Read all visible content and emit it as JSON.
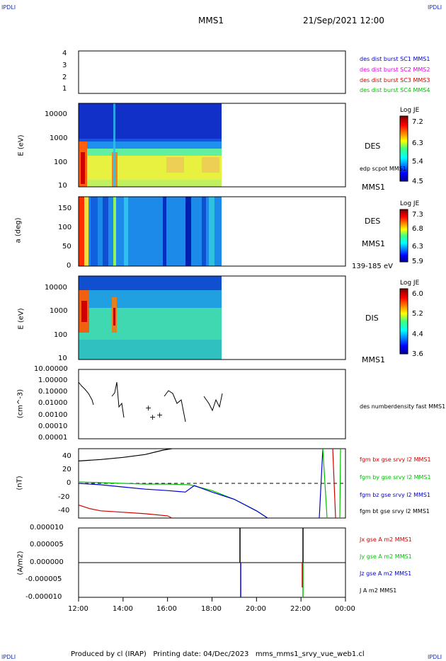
{
  "corners": {
    "tl": "IPDLI",
    "tr": "IPDLI",
    "bl": "IPDLI",
    "br": "IPDLI"
  },
  "header": {
    "spacecraft": "MMS1",
    "datetime": "21/Sep/2021 12:00"
  },
  "footer": {
    "text": "Produced by cl (IRAP)   Printing date: 04/Dec/2023   mms_mms1_srvy_vue_web1.cl"
  },
  "colors": {
    "red": "#d00000",
    "magenta": "#e000e0",
    "green": "#00c000",
    "blue": "#0000d0",
    "black": "#000000"
  },
  "chart_data": [
    {
      "type": "line",
      "panel": "burst-indicator",
      "y_ticks": [
        "4",
        "3",
        "2",
        "1"
      ],
      "legend": [
        {
          "label": "des dist burst SC1 MMS1",
          "color": "#0000d0"
        },
        {
          "label": "des dist burst SC2 MMS2",
          "color": "#e000e0"
        },
        {
          "label": "des dist burst SC3 MMS3",
          "color": "#d00000"
        },
        {
          "label": "des dist burst SC4 MMS4",
          "color": "#00c000"
        }
      ]
    },
    {
      "type": "heatmap",
      "panel": "des-energy",
      "ylabel": "E (eV)",
      "y_ticks": [
        "10000",
        "1000",
        "100",
        "10"
      ],
      "scale": "log",
      "right_labels": [
        "DES",
        "edp scpot MMS1",
        "MMS1"
      ],
      "colorbar": {
        "title": "Log JE",
        "ticks": [
          "7.2",
          "6.3",
          "5.4",
          "4.5"
        ],
        "range": [
          4.5,
          7.2
        ]
      },
      "data_end": "18:30"
    },
    {
      "type": "heatmap",
      "panel": "des-pitch-angle",
      "ylabel": "a (deg)",
      "y_ticks": [
        "150",
        "100",
        "50",
        "0"
      ],
      "ylim": [
        0,
        180
      ],
      "right_labels": [
        "DES",
        "MMS1",
        "139-185 eV"
      ],
      "colorbar": {
        "title": "Log JE",
        "ticks": [
          "7.3",
          "6.8",
          "6.3",
          "5.9"
        ],
        "range": [
          5.9,
          7.3
        ]
      }
    },
    {
      "type": "heatmap",
      "panel": "dis-energy",
      "ylabel": "E (eV)",
      "y_ticks": [
        "10000",
        "1000",
        "100",
        "10"
      ],
      "scale": "log",
      "right_labels": [
        "DIS",
        "MMS1"
      ],
      "colorbar": {
        "title": "Log JE",
        "ticks": [
          "6.0",
          "5.2",
          "4.4",
          "3.6"
        ],
        "range": [
          3.6,
          6.0
        ]
      }
    },
    {
      "type": "scatter",
      "panel": "density",
      "ylabel": "(cm^-3)",
      "y_ticks": [
        "10.00000",
        "1.00000",
        "0.10000",
        "0.01000",
        "0.00100",
        "0.00010",
        "0.00001"
      ],
      "scale": "log",
      "series": [
        {
          "name": "des numberdensity fast MMS1",
          "color": "#000000"
        }
      ]
    },
    {
      "type": "line",
      "panel": "magnetic-field",
      "ylabel": "(nT)",
      "y_ticks": [
        "40",
        "20",
        "0",
        "-20",
        "-40"
      ],
      "ylim": [
        -48,
        48
      ],
      "series": [
        {
          "name": "fgm bx gse srvy l2 MMS1",
          "color": "#d00000",
          "x": [
            12.0,
            12.5,
            13.0,
            14.0,
            15.0,
            16.0,
            16.2
          ],
          "values": [
            -30,
            -35,
            -38,
            -40,
            -42,
            -45,
            -48
          ]
        },
        {
          "name": "fgm by gse srvy l2 MMS1",
          "color": "#00c000",
          "x": [
            12.0,
            13.0,
            14.0,
            15.0,
            16.0,
            17.0,
            18.0,
            19.0,
            20.0,
            20.5
          ],
          "values": [
            2,
            1,
            0,
            -1,
            -1,
            -2,
            -10,
            -22,
            -38,
            -48
          ]
        },
        {
          "name": "fgm bz gse srvy l2 MMS1",
          "color": "#0000d0",
          "x": [
            12.0,
            13.0,
            14.0,
            15.0,
            16.0,
            16.8,
            17.2,
            18.0,
            19.0,
            20.0,
            20.5
          ],
          "values": [
            0,
            -2,
            -5,
            -8,
            -10,
            -12,
            -3,
            -12,
            -22,
            -38,
            -48
          ]
        },
        {
          "name": "fgm bt gse srvy l2 MMS1",
          "color": "#000000",
          "x": [
            12.0,
            13.0,
            14.0,
            15.0,
            15.8,
            16.2
          ],
          "values": [
            31,
            33,
            36,
            40,
            46,
            48
          ]
        }
      ]
    },
    {
      "type": "line",
      "panel": "current-density",
      "ylabel": "(A/m2)",
      "y_ticks": [
        "0.000010",
        "0.000005",
        "0.000000",
        "-0.000005",
        "-0.000010"
      ],
      "ylim": [
        -1e-05,
        1e-05
      ],
      "series": [
        {
          "name": "Jx gse A m2 MMS1",
          "color": "#d00000"
        },
        {
          "name": "Jy gse A m2 MMS1",
          "color": "#00c000"
        },
        {
          "name": "Jz gse A m2 MMS1",
          "color": "#0000d0"
        },
        {
          "name": "J A m2 MMS1",
          "color": "#000000"
        }
      ]
    }
  ],
  "x_ticks": [
    "12:00",
    "14:00",
    "16:00",
    "18:00",
    "20:00",
    "22:00",
    "00:00"
  ]
}
